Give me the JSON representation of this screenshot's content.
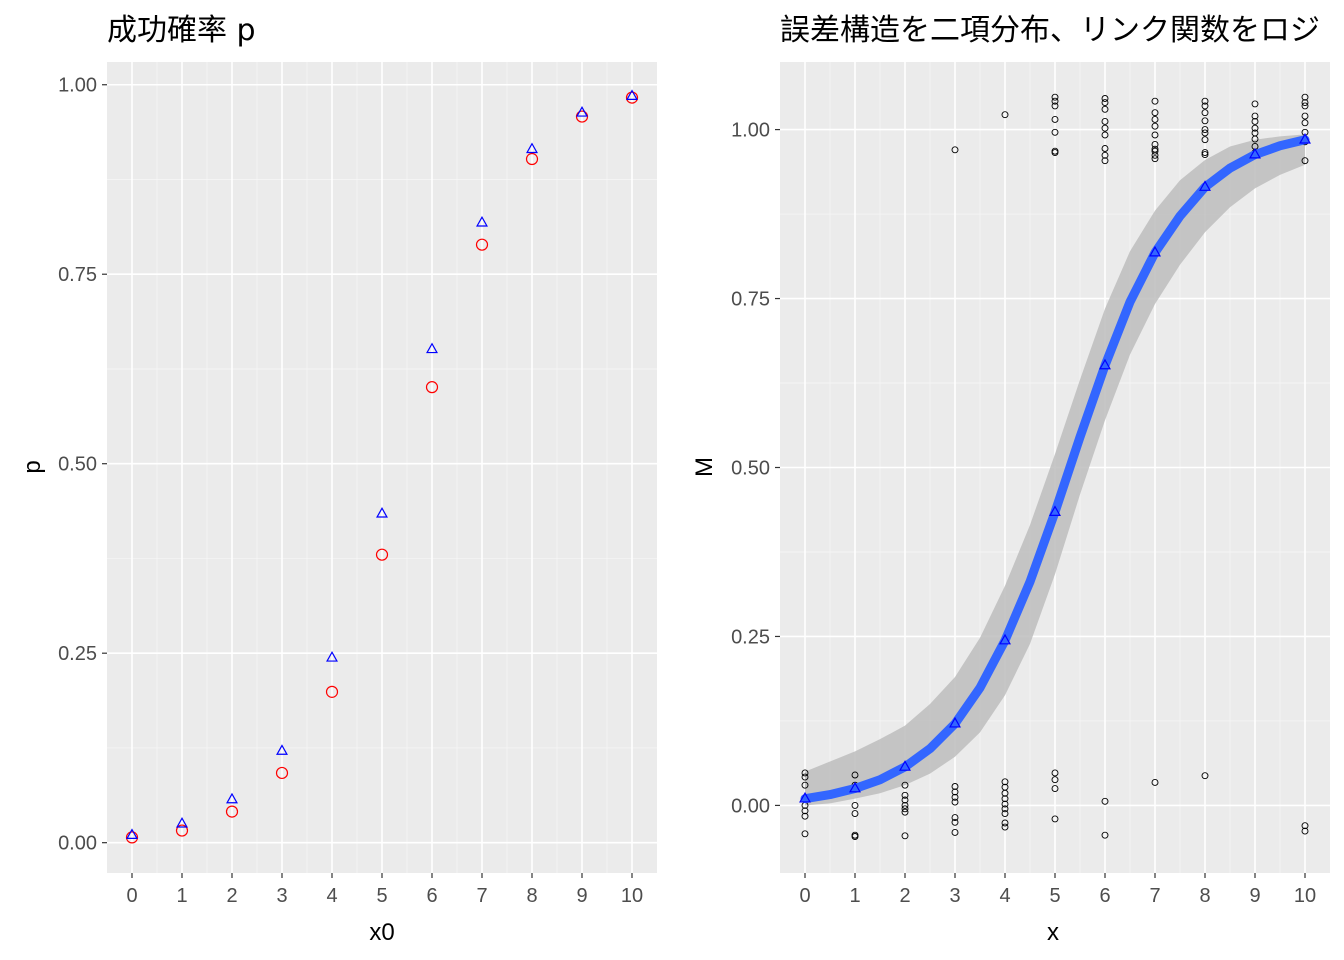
{
  "chart_data": [
    {
      "type": "scatter",
      "title": "成功確率 p",
      "xlabel": "x0",
      "ylabel": "p",
      "xlim": [
        -0.5,
        10.5
      ],
      "ylim": [
        -0.04,
        1.03
      ],
      "xticks": [
        0,
        1,
        2,
        3,
        4,
        5,
        6,
        7,
        8,
        9,
        10
      ],
      "xtick_labels": [
        "0",
        "1",
        "2",
        "3",
        "4",
        "5",
        "6",
        "7",
        "8",
        "9",
        "10"
      ],
      "yticks": [
        0.0,
        0.25,
        0.5,
        0.75,
        1.0
      ],
      "ytick_labels": [
        "0.00",
        "0.25",
        "0.50",
        "0.75",
        "1.00"
      ],
      "grid": true,
      "series": [
        {
          "marker": "circle",
          "color": "#ff0000",
          "x": [
            0,
            1,
            2,
            3,
            4,
            5,
            6,
            7,
            8,
            9,
            10
          ],
          "y": [
            0.007,
            0.016,
            0.041,
            0.092,
            0.199,
            0.38,
            0.601,
            0.789,
            0.902,
            0.958,
            0.983
          ]
        },
        {
          "marker": "triangle",
          "color": "#0000ff",
          "x": [
            0,
            1,
            2,
            3,
            4,
            5,
            6,
            7,
            8,
            9,
            10
          ],
          "y": [
            0.01,
            0.025,
            0.057,
            0.121,
            0.244,
            0.434,
            0.651,
            0.818,
            0.915,
            0.963,
            0.985
          ]
        }
      ]
    },
    {
      "type": "scatter",
      "title": "誤差構造を二項分布、リンク関数をロジ",
      "xlabel": "x",
      "ylabel": "M",
      "xlim": [
        -0.5,
        10.5
      ],
      "ylim": [
        -0.1,
        1.1
      ],
      "xticks": [
        0,
        1,
        2,
        3,
        4,
        5,
        6,
        7,
        8,
        9,
        10
      ],
      "xtick_labels": [
        "0",
        "1",
        "2",
        "3",
        "4",
        "5",
        "6",
        "7",
        "8",
        "9",
        "10"
      ],
      "yticks": [
        0.0,
        0.25,
        0.5,
        0.75,
        1.0
      ],
      "ytick_labels": [
        "0.00",
        "0.25",
        "0.50",
        "0.75",
        "1.00"
      ],
      "grid": true,
      "fit_line": {
        "color": "#3366ff",
        "x": [
          0,
          0.5,
          1,
          1.5,
          2,
          2.5,
          3,
          3.5,
          4,
          4.5,
          5,
          5.5,
          6,
          6.5,
          7,
          7.5,
          8,
          8.5,
          9,
          9.5,
          10
        ],
        "y": [
          0.01,
          0.016,
          0.025,
          0.038,
          0.057,
          0.084,
          0.121,
          0.174,
          0.244,
          0.331,
          0.434,
          0.545,
          0.651,
          0.745,
          0.818,
          0.872,
          0.915,
          0.943,
          0.963,
          0.976,
          0.985
        ]
      },
      "confidence_band": {
        "color": "#bdbdbd",
        "x": [
          0,
          0.5,
          1,
          1.5,
          2,
          2.5,
          3,
          3.5,
          4,
          4.5,
          5,
          5.5,
          6,
          6.5,
          7,
          7.5,
          8,
          8.5,
          9,
          9.5,
          10
        ],
        "lower": [
          0.0,
          0.003,
          0.01,
          0.018,
          0.03,
          0.047,
          0.072,
          0.108,
          0.163,
          0.239,
          0.342,
          0.46,
          0.57,
          0.667,
          0.742,
          0.8,
          0.848,
          0.885,
          0.913,
          0.933,
          0.948
        ],
        "upper": [
          0.05,
          0.065,
          0.08,
          0.098,
          0.118,
          0.15,
          0.19,
          0.248,
          0.325,
          0.415,
          0.52,
          0.63,
          0.735,
          0.82,
          0.88,
          0.925,
          0.955,
          0.975,
          0.985,
          0.99,
          0.993
        ]
      },
      "fitted_points": {
        "marker": "triangle",
        "color": "#0000ff",
        "x": [
          0,
          1,
          2,
          3,
          4,
          5,
          6,
          7,
          8,
          9,
          10
        ],
        "y": [
          0.01,
          0.025,
          0.057,
          0.121,
          0.244,
          0.434,
          0.651,
          0.818,
          0.915,
          0.963,
          0.985
        ]
      },
      "observations": {
        "marker": "circle",
        "color": "#000000",
        "x": [
          0,
          0,
          0,
          0,
          0,
          0,
          0,
          0,
          1,
          1,
          1,
          1,
          1,
          1,
          2,
          2,
          2,
          2,
          2,
          2,
          2,
          3,
          3,
          3,
          3,
          3,
          3,
          3,
          3,
          4,
          4,
          4,
          4,
          4,
          4,
          4,
          4,
          4,
          4,
          5,
          5,
          5,
          5,
          5,
          5,
          5,
          5,
          5,
          5,
          5,
          6,
          6,
          6,
          6,
          6,
          6,
          6,
          6,
          6,
          6,
          6,
          7,
          7,
          7,
          7,
          7,
          7,
          7,
          7,
          7,
          7,
          7,
          8,
          8,
          8,
          8,
          8,
          8,
          8,
          8,
          8,
          8,
          9,
          9,
          9,
          9,
          9,
          9,
          9,
          9,
          9,
          10,
          10,
          10,
          10,
          10,
          10,
          10,
          10,
          10,
          10
        ],
        "y": [
          0.048,
          0.042,
          0.03,
          0.01,
          0.0,
          -0.008,
          -0.016,
          -0.042,
          0.045,
          0.03,
          0.0,
          -0.012,
          -0.044,
          -0.046,
          0.03,
          0.015,
          0.008,
          0.0,
          -0.005,
          -0.01,
          -0.045,
          0.028,
          0.02,
          0.012,
          0.005,
          -0.018,
          -0.025,
          -0.04,
          0.97,
          0.035,
          0.027,
          0.018,
          0.01,
          0.002,
          -0.005,
          -0.012,
          -0.026,
          -0.032,
          1.022,
          0.048,
          0.038,
          0.025,
          -0.02,
          1.048,
          1.042,
          1.035,
          1.015,
          0.996,
          0.968,
          0.966,
          0.006,
          -0.044,
          1.046,
          1.04,
          1.03,
          1.012,
          1.002,
          0.992,
          0.972,
          0.962,
          0.954,
          0.034,
          1.042,
          1.025,
          1.015,
          1.005,
          0.992,
          0.978,
          0.971,
          0.968,
          0.962,
          0.957,
          0.044,
          1.042,
          1.035,
          1.025,
          1.013,
          1.0,
          0.995,
          0.985,
          0.966,
          0.963,
          1.038,
          1.02,
          1.012,
          1.002,
          0.995,
          0.986,
          0.975,
          0.966,
          0.962,
          -0.03,
          -0.038,
          1.048,
          1.04,
          1.035,
          1.02,
          1.01,
          0.996,
          0.982,
          0.954
        ]
      }
    }
  ]
}
